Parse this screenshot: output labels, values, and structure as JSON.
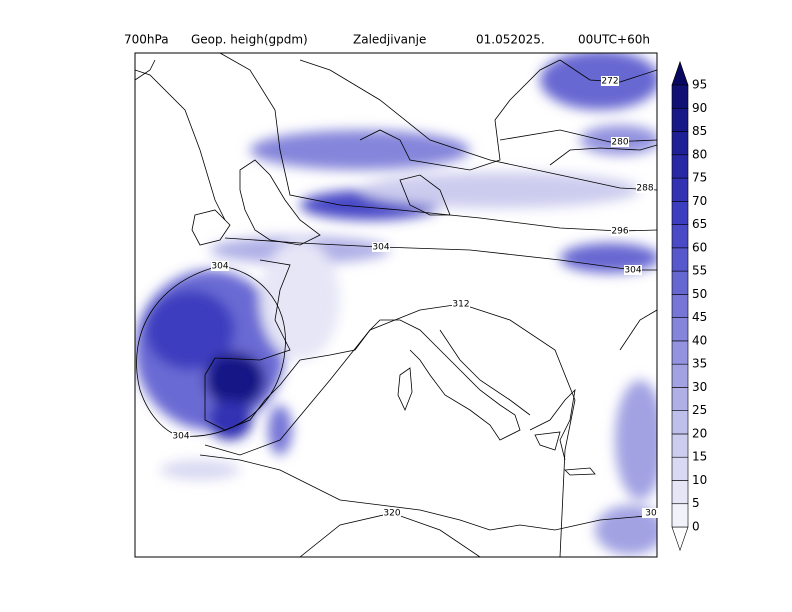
{
  "header": {
    "title_parts": [
      "700hPa",
      "Geop. heigh(gpdm)",
      "Zaledjivanje",
      "01.052025.",
      "00UTC+60h"
    ]
  },
  "contour_labels": [
    272,
    280,
    288,
    296,
    304,
    304,
    304,
    304,
    312,
    320,
    30
  ],
  "colorbar": {
    "levels": [
      0,
      5,
      10,
      15,
      20,
      25,
      30,
      35,
      40,
      45,
      50,
      55,
      60,
      65,
      70,
      75,
      80,
      85,
      90,
      95
    ],
    "colors": [
      "#ffffff",
      "#f2f2fb",
      "#e6e6f7",
      "#d9d9f3",
      "#ccccef",
      "#bfbfeb",
      "#b0b0e7",
      "#a2a2e3",
      "#9393df",
      "#8585db",
      "#7676d7",
      "#6767d2",
      "#5858cd",
      "#4a4ac7",
      "#3d3dbf",
      "#3232b3",
      "#2828a5",
      "#202096",
      "#181886",
      "#101075",
      "#080860"
    ]
  }
}
